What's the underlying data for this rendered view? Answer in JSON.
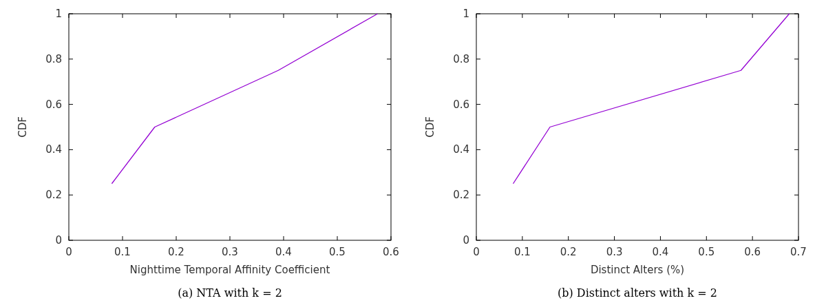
{
  "chart_data": [
    {
      "type": "line",
      "xlabel": "Nighttime Temporal Affinity Coefficient",
      "ylabel": "CDF",
      "annotations": [
        "(a) NTA with k = 2"
      ],
      "xlim": [
        0,
        0.6
      ],
      "xticks": [
        0,
        0.1,
        0.2,
        0.3,
        0.4,
        0.5,
        0.6
      ],
      "ylim": [
        0,
        1
      ],
      "yticks": [
        0,
        0.2,
        0.4,
        0.6,
        0.8,
        1
      ],
      "grid": false,
      "series": [
        {
          "color": "#9400d3",
          "x": [
            0.08,
            0.16,
            0.39,
            0.575
          ],
          "values": [
            0.25,
            0.5,
            0.75,
            1
          ]
        }
      ]
    },
    {
      "type": "line",
      "xlabel": "Distinct Alters (%)",
      "ylabel": "CDF",
      "annotations": [
        "(b) Distinct alters with k = 2"
      ],
      "xlim": [
        0,
        0.7
      ],
      "xticks": [
        0,
        0.1,
        0.2,
        0.3,
        0.4,
        0.5,
        0.6,
        0.7
      ],
      "ylim": [
        0,
        1
      ],
      "yticks": [
        0,
        0.2,
        0.4,
        0.6,
        0.8,
        1
      ],
      "grid": false,
      "series": [
        {
          "color": "#9400d3",
          "x": [
            0.08,
            0.16,
            0.575,
            0.68
          ],
          "values": [
            0.25,
            0.5,
            0.75,
            1
          ]
        }
      ]
    }
  ]
}
